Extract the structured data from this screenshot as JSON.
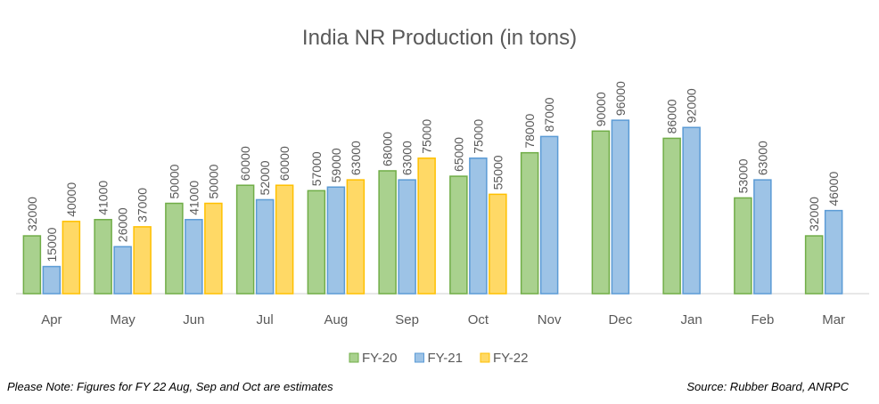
{
  "chart_data": {
    "type": "bar",
    "title": "India NR Production  (in tons)",
    "categories": [
      "Apr",
      "May",
      "Jun",
      "Jul",
      "Aug",
      "Sep",
      "Oct",
      "Nov",
      "Dec",
      "Jan",
      "Feb",
      "Mar"
    ],
    "series": [
      {
        "name": "FY-20",
        "color": "#a9d18e",
        "stroke": "#70ad47",
        "values": [
          32000,
          41000,
          50000,
          60000,
          57000,
          68000,
          65000,
          78000,
          90000,
          86000,
          53000,
          32000
        ]
      },
      {
        "name": "FY-21",
        "color": "#9dc3e6",
        "stroke": "#5b9bd5",
        "values": [
          15000,
          26000,
          41000,
          52000,
          59000,
          63000,
          75000,
          87000,
          96000,
          92000,
          63000,
          46000
        ]
      },
      {
        "name": "FY-22",
        "color": "#ffd966",
        "stroke": "#ffc000",
        "values": [
          40000,
          37000,
          50000,
          60000,
          63000,
          75000,
          55000,
          null,
          null,
          null,
          null,
          null
        ]
      }
    ],
    "ylim": [
      0,
      100000
    ],
    "note": "Please Note: Figures for FY 22 Aug, Sep and Oct are estimates",
    "source": "Source: Rubber Board, ANRPC"
  }
}
